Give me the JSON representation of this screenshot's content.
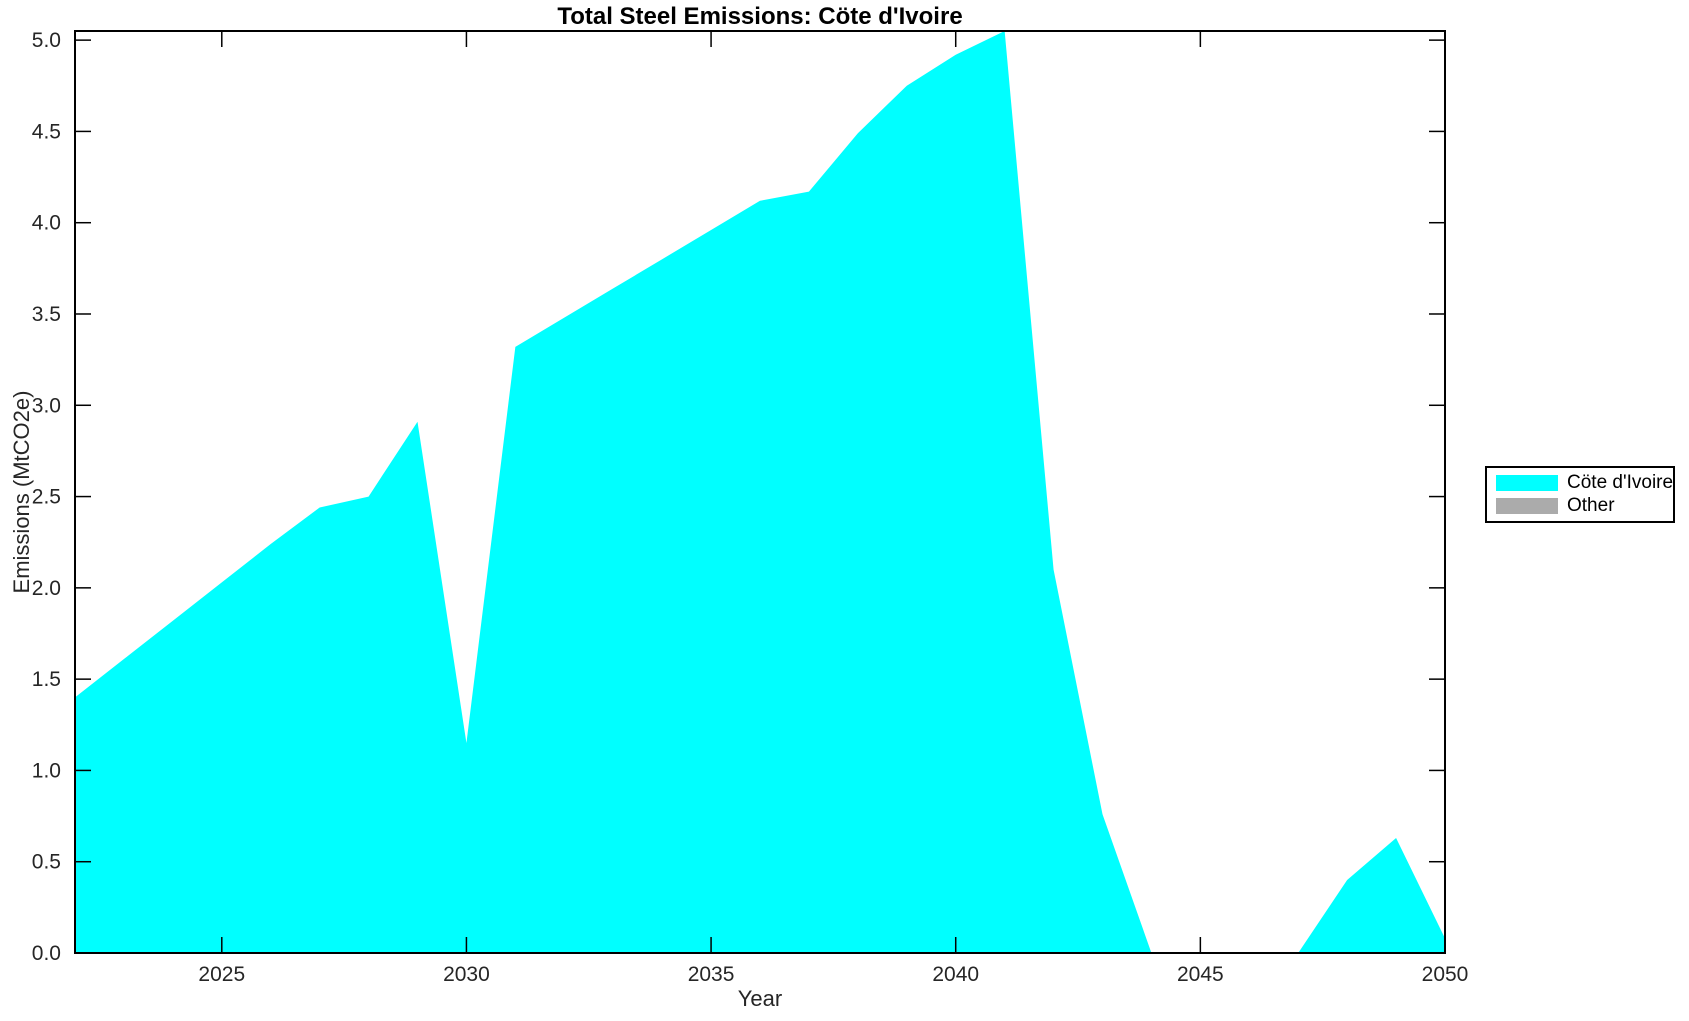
{
  "figure": {
    "title": "Total Steel Emissions: Cöte d'Ivoire",
    "xlabel": "Year",
    "ylabel": "Emissions (MtCO2e)"
  },
  "legend": {
    "items": [
      {
        "label": "Cöte d'Ivoire",
        "color": "#00FFFF"
      },
      {
        "label": "Other",
        "color": "#ABABAB"
      }
    ]
  },
  "colors": {
    "area_fill": "#00FFFF",
    "other_fill": "#ABABAB",
    "axis_frame": "#000000",
    "tick_text": "#262626",
    "background": "#FFFFFF"
  },
  "chart_data": {
    "type": "area",
    "title": "Total Steel Emissions: Cöte d'Ivoire",
    "xlabel": "Year",
    "ylabel": "Emissions (MtCO2e)",
    "xlim": [
      2022,
      2050
    ],
    "ylim": [
      0,
      5.05
    ],
    "grid": false,
    "legend_position": "right-outside",
    "x_ticks": [
      2025,
      2030,
      2035,
      2040,
      2045,
      2050
    ],
    "x_tick_labels": [
      "2025",
      "2030",
      "2035",
      "2040",
      "2045",
      "2050"
    ],
    "y_ticks": [
      0,
      0.5,
      1.0,
      1.5,
      2.0,
      2.5,
      3.0,
      3.5,
      4.0,
      4.5,
      5.0
    ],
    "y_tick_labels": [
      "0.0",
      "0.5",
      "1.0",
      "1.5",
      "2.0",
      "2.5",
      "3.0",
      "3.5",
      "4.0",
      "4.5",
      "5.0"
    ],
    "x": [
      2022,
      2023,
      2024,
      2025,
      2026,
      2027,
      2028,
      2029,
      2030,
      2031,
      2032,
      2033,
      2034,
      2035,
      2036,
      2037,
      2038,
      2039,
      2040,
      2041,
      2042,
      2043,
      2044,
      2045,
      2046,
      2047,
      2048,
      2049,
      2050
    ],
    "series": [
      {
        "name": "Cöte d'Ivoire",
        "color": "#00FFFF",
        "values": [
          1.4,
          1.61,
          1.82,
          2.03,
          2.24,
          2.44,
          2.5,
          2.91,
          1.15,
          3.32,
          3.48,
          3.64,
          3.8,
          3.96,
          4.12,
          4.17,
          4.49,
          4.75,
          4.92,
          5.05,
          2.1,
          0.76,
          0.0,
          0.0,
          0.0,
          0.0,
          0.4,
          0.63,
          0.08
        ]
      },
      {
        "name": "Other",
        "color": "#ABABAB",
        "values": [
          0,
          0,
          0,
          0,
          0,
          0,
          0,
          0,
          0,
          0,
          0,
          0,
          0,
          0,
          0,
          0,
          0,
          0,
          0,
          0,
          0,
          0,
          0,
          0,
          0,
          0,
          0,
          0,
          0
        ]
      }
    ]
  }
}
